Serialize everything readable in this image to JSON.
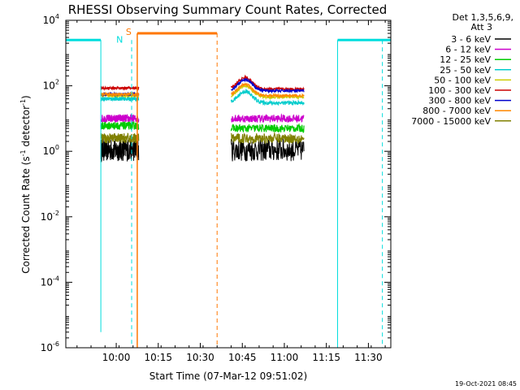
{
  "chart_data": {
    "type": "line",
    "title": "RHESSI Observing Summary Count Rates, Corrected",
    "xlabel": "Start Time (07-Mar-12 09:51:02)",
    "ylabel_main": "Corrected Count Rate (s",
    "ylabel_sup1": "-1",
    "ylabel_mid": " detector",
    "ylabel_sup2": "-1",
    "ylabel_end": ")",
    "yscale": "log",
    "ylim_exp": [
      -6,
      4
    ],
    "xlim_min": [
      -9,
      107
    ],
    "x_ticks": [
      {
        "min": 9,
        "label": "10:00"
      },
      {
        "min": 24,
        "label": "10:15"
      },
      {
        "min": 39,
        "label": "10:30"
      },
      {
        "min": 54,
        "label": "10:45"
      },
      {
        "min": 69,
        "label": "11:00"
      },
      {
        "min": 84,
        "label": "11:15"
      },
      {
        "min": 99,
        "label": "11:30"
      }
    ],
    "y_ticks": [
      {
        "exp": 4,
        "base": "10",
        "sup": "4"
      },
      {
        "exp": 2,
        "base": "10",
        "sup": "2"
      },
      {
        "exp": 0,
        "base": "10",
        "sup": "0"
      },
      {
        "exp": -2,
        "base": "10",
        "sup": "-2"
      },
      {
        "exp": -4,
        "base": "10",
        "sup": "-4"
      },
      {
        "exp": -6,
        "base": "10",
        "sup": "-6"
      }
    ],
    "legend_header": [
      "Det 1,3,5,6,9,",
      "Att 3"
    ],
    "series": [
      {
        "name": "3 - 6 keV",
        "color": "#000000",
        "level_a": 1.1,
        "level_b": 1.1,
        "noise": 0.35,
        "dip": 0
      },
      {
        "name": "6 - 12 keV",
        "color": "#cc00cc",
        "level_a": 10,
        "level_b": 10,
        "noise": 0.12,
        "dip": 0
      },
      {
        "name": "12 - 25 keV",
        "color": "#00cc00",
        "level_a": 6,
        "level_b": 5,
        "noise": 0.12,
        "dip": 0
      },
      {
        "name": "25 - 50 keV",
        "color": "#00cccc",
        "level_a": 40,
        "level_b": 30,
        "noise": 0.06,
        "dip": 1
      },
      {
        "name": "50 - 100 keV",
        "color": "#cccc00",
        "level_a": 50,
        "level_b": 45,
        "noise": 0.04,
        "dip": 1
      },
      {
        "name": "100 - 300 keV",
        "color": "#cc0000",
        "level_a": 85,
        "level_b": 80,
        "noise": 0.04,
        "dip": 1
      },
      {
        "name": "300 - 800 keV",
        "color": "#0000cc",
        "level_a": 55,
        "level_b": 70,
        "noise": 0.04,
        "dip": 1
      },
      {
        "name": "800 - 7000 keV",
        "color": "#ff8800",
        "level_a": 55,
        "level_b": 50,
        "noise": 0.04,
        "dip": 1
      },
      {
        "name": "7000 - 15000 keV",
        "color": "#808000",
        "level_a": 2.5,
        "level_b": 2.5,
        "noise": 0.15,
        "dip": 0
      }
    ],
    "intervals": {
      "a": [
        3.5,
        17
      ],
      "b": [
        50,
        76
      ]
    },
    "night_markers": {
      "label": "N",
      "color": "#00dddd",
      "bars": [
        [
          -9,
          3.5
        ],
        [
          88,
          107
        ]
      ],
      "bar_level": 2500,
      "solid_lines": [
        3.5,
        88
      ],
      "dashed_lines": [
        14.5,
        104
      ]
    },
    "saa_markers": {
      "label": "S",
      "color": "#ff7700",
      "bar": [
        16.5,
        45
      ],
      "bar_level": 4000,
      "solid_lines": [
        16.5
      ],
      "dashed_lines": [
        45
      ]
    },
    "footer_timestamp": "19-Oct-2021 08:45"
  }
}
